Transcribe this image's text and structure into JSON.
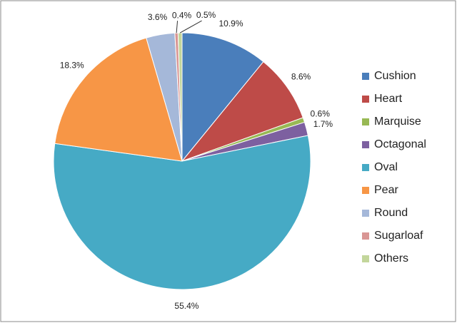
{
  "chart_data": {
    "type": "pie",
    "categories": [
      "Cushion",
      "Heart",
      "Marquise",
      "Octagonal",
      "Oval",
      "Pear",
      "Round",
      "Sugarloaf",
      "Others"
    ],
    "values": [
      10.9,
      8.6,
      0.6,
      1.7,
      55.4,
      18.3,
      3.6,
      0.4,
      0.5
    ],
    "value_labels": [
      "10.9%",
      "8.6%",
      "0.6%",
      "1.7%",
      "55.4%",
      "18.3%",
      "3.6%",
      "0.4%",
      "0.5%"
    ],
    "colors": [
      "#4a7ebb",
      "#be4b48",
      "#98b954",
      "#7d60a0",
      "#46aac5",
      "#f79646",
      "#a5b8d9",
      "#d99694",
      "#c3d69b"
    ],
    "legend": "right"
  }
}
